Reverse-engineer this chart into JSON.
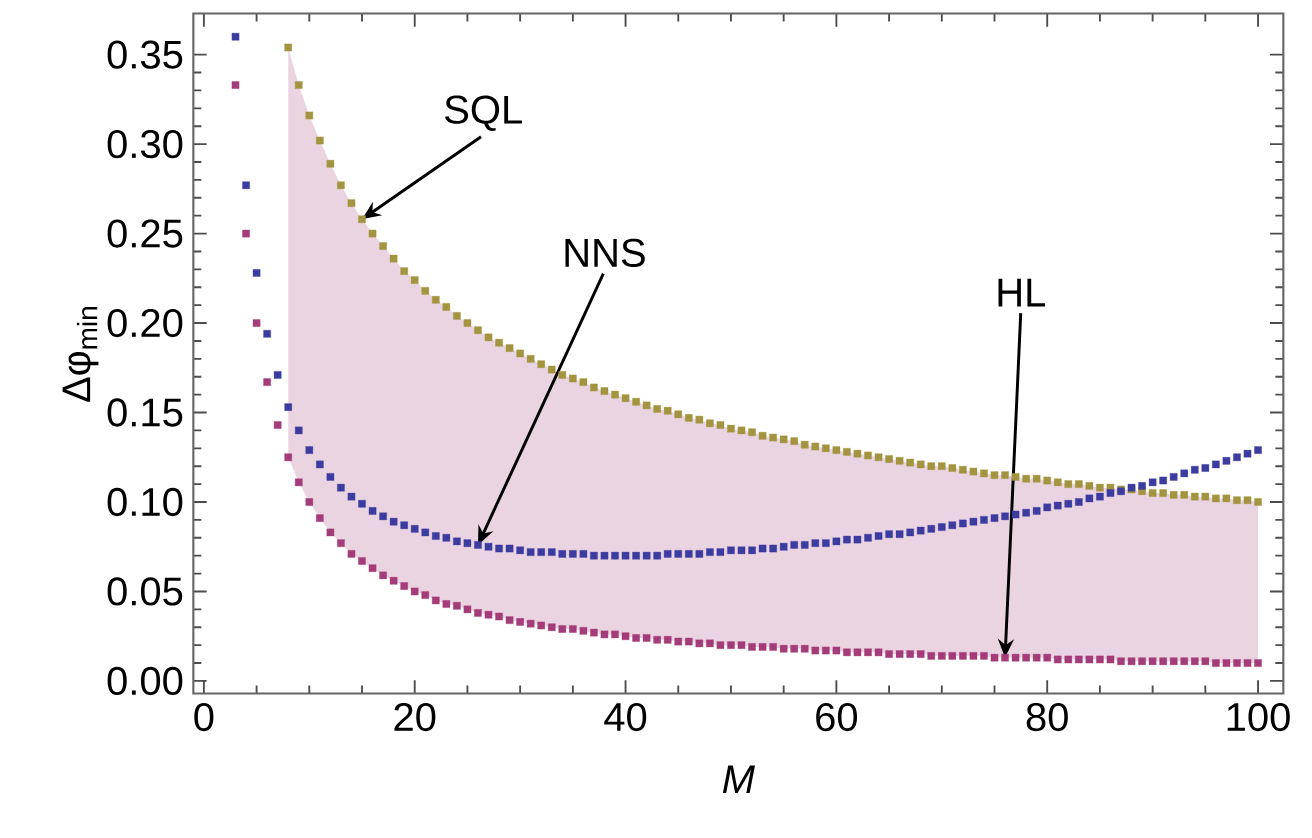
{
  "chart_data": {
    "type": "scatter",
    "xlabel": "M",
    "ylabel": "Δφ$_{min}$",
    "x": [
      3,
      4,
      5,
      6,
      7,
      8,
      9,
      10,
      11,
      12,
      13,
      14,
      15,
      16,
      17,
      18,
      19,
      20,
      21,
      22,
      23,
      24,
      25,
      26,
      27,
      28,
      29,
      30,
      31,
      32,
      33,
      34,
      35,
      36,
      37,
      38,
      39,
      40,
      41,
      42,
      43,
      44,
      45,
      46,
      47,
      48,
      49,
      50,
      51,
      52,
      53,
      54,
      55,
      56,
      57,
      58,
      59,
      60,
      61,
      62,
      63,
      64,
      65,
      66,
      67,
      68,
      69,
      70,
      71,
      72,
      73,
      74,
      75,
      76,
      77,
      78,
      79,
      80,
      81,
      82,
      83,
      84,
      85,
      86,
      87,
      88,
      89,
      90,
      91,
      92,
      93,
      94,
      95,
      96,
      97,
      98,
      99,
      100
    ],
    "marker": "square",
    "xlim": [
      -1,
      102.4
    ],
    "ylim": [
      -0.007,
      0.373
    ],
    "xticks": [
      0,
      20,
      40,
      60,
      80,
      100
    ],
    "yticks": [
      {
        "value": 0,
        "label": "0.00"
      },
      {
        "value": 0.05,
        "label": "0.05"
      },
      {
        "value": 0.1,
        "label": "0.10"
      },
      {
        "value": 0.15,
        "label": "0.15"
      },
      {
        "value": 0.2,
        "label": "0.20"
      },
      {
        "value": 0.25,
        "label": "0.25"
      },
      {
        "value": 0.3,
        "label": "0.30"
      },
      {
        "value": 0.35,
        "label": "0.35"
      }
    ],
    "annotations": [
      {
        "text": "SQL",
        "x": 15,
        "y": 0.258
      },
      {
        "text": "NNS",
        "x": 26,
        "y": 0.076
      },
      {
        "text": "HL",
        "x": 76,
        "y": 0.013
      }
    ],
    "series": [
      {
        "color": "#a39440",
        "values": [
          null,
          null,
          null,
          null,
          null,
          0.354,
          0.333,
          0.316,
          0.302,
          0.289,
          0.277,
          0.267,
          0.258,
          0.25,
          0.243,
          0.236,
          0.229,
          0.224,
          0.218,
          0.213,
          0.209,
          0.204,
          0.2,
          0.196,
          0.192,
          0.189,
          0.186,
          0.183,
          0.18,
          0.177,
          0.174,
          0.171,
          0.169,
          0.167,
          0.164,
          0.162,
          0.16,
          0.158,
          0.156,
          0.154,
          0.152,
          0.151,
          0.149,
          0.147,
          0.146,
          0.144,
          0.143,
          0.141,
          0.14,
          0.139,
          0.137,
          0.136,
          0.135,
          0.134,
          0.132,
          0.131,
          0.13,
          0.129,
          0.128,
          0.127,
          0.126,
          0.125,
          0.124,
          0.123,
          0.122,
          0.121,
          0.12,
          0.12,
          0.119,
          0.118,
          0.117,
          0.116,
          0.115,
          0.115,
          0.114,
          0.113,
          0.113,
          0.112,
          0.111,
          0.11,
          0.11,
          0.109,
          0.108,
          0.108,
          0.107,
          0.107,
          0.106,
          0.105,
          0.105,
          0.104,
          0.104,
          0.103,
          0.103,
          0.102,
          0.102,
          0.101,
          0.101,
          0.1
        ]
      },
      {
        "color": "#3c3ca0",
        "values": [
          0.36,
          0.277,
          0.228,
          0.194,
          0.171,
          0.153,
          0.14,
          0.129,
          0.121,
          0.114,
          0.108,
          0.103,
          0.099,
          0.095,
          0.092,
          0.089,
          0.087,
          0.085,
          0.083,
          0.081,
          0.08,
          0.078,
          0.077,
          0.076,
          0.075,
          0.074,
          0.074,
          0.073,
          0.072,
          0.072,
          0.072,
          0.071,
          0.071,
          0.071,
          0.07,
          0.07,
          0.07,
          0.07,
          0.07,
          0.07,
          0.07,
          0.071,
          0.071,
          0.071,
          0.071,
          0.072,
          0.072,
          0.073,
          0.073,
          0.073,
          0.074,
          0.074,
          0.075,
          0.076,
          0.076,
          0.077,
          0.077,
          0.078,
          0.079,
          0.079,
          0.08,
          0.081,
          0.082,
          0.082,
          0.083,
          0.084,
          0.085,
          0.086,
          0.087,
          0.088,
          0.089,
          0.09,
          0.091,
          0.092,
          0.093,
          0.094,
          0.095,
          0.097,
          0.098,
          0.099,
          0.1,
          0.102,
          0.103,
          0.105,
          0.106,
          0.108,
          0.109,
          0.111,
          0.112,
          0.114,
          0.116,
          0.118,
          0.119,
          0.121,
          0.123,
          0.125,
          0.127,
          0.129
        ]
      },
      {
        "color": "#a33c78",
        "values": [
          0.333,
          0.25,
          0.2,
          0.167,
          0.143,
          0.125,
          0.111,
          0.1,
          0.091,
          0.083,
          0.077,
          0.071,
          0.067,
          0.063,
          0.059,
          0.056,
          0.053,
          0.05,
          0.048,
          0.045,
          0.043,
          0.042,
          0.04,
          0.038,
          0.037,
          0.036,
          0.034,
          0.033,
          0.032,
          0.031,
          0.03,
          0.029,
          0.029,
          0.028,
          0.027,
          0.026,
          0.026,
          0.025,
          0.024,
          0.024,
          0.023,
          0.023,
          0.022,
          0.022,
          0.021,
          0.021,
          0.02,
          0.02,
          0.02,
          0.019,
          0.019,
          0.019,
          0.018,
          0.018,
          0.018,
          0.017,
          0.017,
          0.017,
          0.016,
          0.016,
          0.016,
          0.016,
          0.015,
          0.015,
          0.015,
          0.015,
          0.014,
          0.014,
          0.014,
          0.014,
          0.014,
          0.014,
          0.013,
          0.013,
          0.013,
          0.013,
          0.013,
          0.013,
          0.012,
          0.012,
          0.012,
          0.012,
          0.012,
          0.012,
          0.011,
          0.011,
          0.011,
          0.011,
          0.011,
          0.011,
          0.011,
          0.011,
          0.011,
          0.01,
          0.01,
          0.01,
          0.01,
          0.01
        ],
        "lower": [
          null,
          null,
          null,
          null,
          null,
          0.125,
          0.111,
          0.1,
          0.091,
          0.083,
          0.077,
          0.071,
          0.067,
          0.063,
          0.059,
          0.056,
          0.053,
          0.05,
          0.048,
          0.045,
          0.043,
          0.042,
          0.04,
          0.038,
          0.037,
          0.036,
          0.034,
          0.033,
          0.032,
          0.031,
          0.03,
          0.029,
          0.029,
          0.028,
          0.027,
          0.026,
          0.026,
          0.025,
          0.024,
          0.024,
          0.023,
          0.023,
          0.022,
          0.022,
          0.021,
          0.021,
          0.02,
          0.02,
          0.02,
          0.019,
          0.019,
          0.019,
          0.018,
          0.018,
          0.018,
          0.017,
          0.017,
          0.017,
          0.016,
          0.016,
          0.016,
          0.016,
          0.015,
          0.015,
          0.015,
          0.015,
          0.014,
          0.014,
          0.014,
          0.014,
          0.014,
          0.014,
          0.013,
          0.013,
          0.013,
          0.013,
          0.013,
          0.013,
          0.012,
          0.012,
          0.012,
          0.012,
          0.012,
          0.012,
          0.011,
          0.011,
          0.011,
          0.011,
          0.011,
          0.011,
          0.011,
          0.011,
          0.011,
          0.01,
          0.01,
          0.01,
          0.01,
          0.01
        ],
        "upper": [
          null,
          null,
          null,
          null,
          null,
          0.354,
          0.333,
          0.316,
          0.302,
          0.289,
          0.277,
          0.267,
          0.258,
          0.25,
          0.243,
          0.236,
          0.229,
          0.224,
          0.218,
          0.213,
          0.209,
          0.204,
          0.2,
          0.196,
          0.192,
          0.189,
          0.186,
          0.183,
          0.18,
          0.177,
          0.174,
          0.171,
          0.169,
          0.167,
          0.164,
          0.162,
          0.16,
          0.158,
          0.156,
          0.154,
          0.152,
          0.151,
          0.149,
          0.147,
          0.146,
          0.144,
          0.143,
          0.141,
          0.14,
          0.139,
          0.137,
          0.136,
          0.135,
          0.134,
          0.132,
          0.131,
          0.13,
          0.129,
          0.128,
          0.127,
          0.126,
          0.125,
          0.124,
          0.123,
          0.122,
          0.121,
          0.12,
          0.12,
          0.119,
          0.118,
          0.117,
          0.116,
          0.115,
          0.115,
          0.114,
          0.113,
          0.113,
          0.112,
          0.111,
          0.11,
          0.11,
          0.109,
          0.108,
          0.108,
          0.107,
          0.107,
          0.106,
          0.105,
          0.105,
          0.104,
          0.104,
          0.103,
          0.103,
          0.102,
          0.102,
          0.101,
          0.101,
          0.1
        ]
      }
    ]
  }
}
